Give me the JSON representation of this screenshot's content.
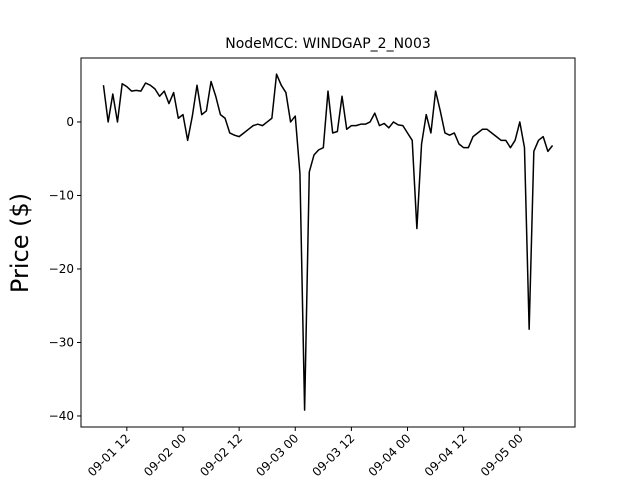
{
  "chart_data": {
    "type": "line",
    "title": "NodeMCC: WINDGAP_2_N003",
    "y_label": "Price ($)",
    "x": [
      "09-01 07",
      "09-01 08",
      "09-01 09",
      "09-01 10",
      "09-01 11",
      "09-01 12",
      "09-01 13",
      "09-01 14",
      "09-01 15",
      "09-01 16",
      "09-01 17",
      "09-01 18",
      "09-01 19",
      "09-01 20",
      "09-01 21",
      "09-01 22",
      "09-01 23",
      "09-02 00",
      "09-02 01",
      "09-02 02",
      "09-02 03",
      "09-02 04",
      "09-02 05",
      "09-02 06",
      "09-02 07",
      "09-02 08",
      "09-02 09",
      "09-02 10",
      "09-02 11",
      "09-02 12",
      "09-02 13",
      "09-02 14",
      "09-02 15",
      "09-02 16",
      "09-02 17",
      "09-02 18",
      "09-02 19",
      "09-02 20",
      "09-02 21",
      "09-02 22",
      "09-02 23",
      "09-03 00",
      "09-03 01",
      "09-03 02",
      "09-03 03",
      "09-03 04",
      "09-03 05",
      "09-03 06",
      "09-03 07",
      "09-03 08",
      "09-03 09",
      "09-03 10",
      "09-03 11",
      "09-03 12",
      "09-03 13",
      "09-03 14",
      "09-03 15",
      "09-03 16",
      "09-03 17",
      "09-03 18",
      "09-03 19",
      "09-03 20",
      "09-03 21",
      "09-03 22",
      "09-03 23",
      "09-04 00",
      "09-04 01",
      "09-04 02",
      "09-04 03",
      "09-04 04",
      "09-04 05",
      "09-04 06",
      "09-04 07",
      "09-04 08",
      "09-04 09",
      "09-04 10",
      "09-04 11",
      "09-04 12",
      "09-04 13",
      "09-04 14",
      "09-04 15",
      "09-04 16",
      "09-04 17",
      "09-04 18",
      "09-04 19",
      "09-04 20",
      "09-04 21",
      "09-04 22",
      "09-04 23",
      "09-05 00",
      "09-05 01",
      "09-05 02",
      "09-05 03",
      "09-05 04",
      "09-05 05",
      "09-05 06",
      "09-05 07"
    ],
    "series": [
      {
        "name": "Price",
        "color": "#000000",
        "values": [
          5.0,
          0,
          3.8,
          0,
          5.2,
          4.8,
          4.2,
          4.3,
          4.2,
          5.3,
          5.0,
          4.5,
          3.5,
          4.2,
          2.5,
          4.0,
          0.5,
          1.0,
          -2.5,
          0.8,
          5.0,
          1.0,
          1.5,
          5.5,
          3.5,
          1.0,
          0.5,
          -1.5,
          -1.8,
          -2.0,
          -1.5,
          -1.0,
          -0.5,
          -0.3,
          -0.5,
          0,
          0.5,
          6.5,
          5.0,
          4.0,
          0,
          0.8,
          -7,
          -39.2,
          -6.8,
          -4.5,
          -3.8,
          -3.5,
          4.2,
          -1.5,
          -1.3,
          3.5,
          -1,
          -0.5,
          -0.5,
          -0.3,
          -0.3,
          0,
          1.2,
          -0.5,
          -0.2,
          -0.8,
          0,
          -0.4,
          -0.5,
          -1.5,
          -2.5,
          -14.5,
          -3,
          1.0,
          -1.5,
          4.2,
          1.5,
          -1.5,
          -1.8,
          -1.5,
          -3.0,
          -3.5,
          -3.5,
          -2.0,
          -1.5,
          -1.0,
          -1.0,
          -1.5,
          -2.0,
          -2.5,
          -2.5,
          -3.5,
          -2.5,
          0,
          -3.5,
          -28.2,
          -4.0,
          -2.5,
          -2.0,
          -4.0,
          -3.2
        ]
      }
    ],
    "xlim": [
      "09-01 02:12",
      "09-05 11:48"
    ],
    "xticks": [
      "09-01 12",
      "09-02 00",
      "09-02 12",
      "09-03 00",
      "09-03 12",
      "09-04 00",
      "09-04 12",
      "09-05 00"
    ],
    "ylim": [
      -41.5,
      8.7
    ],
    "yticks": [
      0,
      {
        "value": -10,
        "label": "−10"
      },
      {
        "value": -20,
        "label": "−20"
      },
      {
        "value": -30,
        "label": "−30"
      },
      {
        "value": -40,
        "label": "−40"
      }
    ]
  }
}
